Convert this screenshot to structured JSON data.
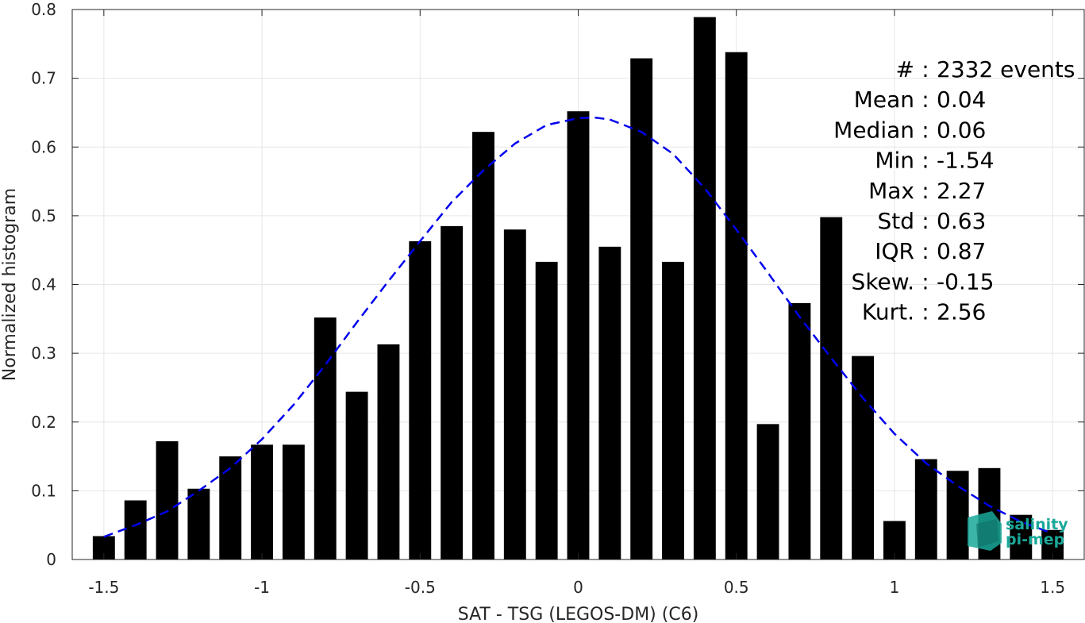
{
  "chart_data": {
    "type": "bar",
    "xlabel": "SAT - TSG (LEGOS-DM) (C6)",
    "ylabel": "Normalized histogram",
    "xlim": [
      -1.6,
      1.6
    ],
    "ylim": [
      0,
      0.8
    ],
    "grid": true,
    "xticks": [
      {
        "value": -1.5,
        "label": "-1.5"
      },
      {
        "value": -1,
        "label": "-1"
      },
      {
        "value": -0.5,
        "label": "-0.5"
      },
      {
        "value": 0,
        "label": "0"
      },
      {
        "value": 0.5,
        "label": "0.5"
      },
      {
        "value": 1,
        "label": "1"
      },
      {
        "value": 1.5,
        "label": "1.5"
      }
    ],
    "yticks": [
      {
        "value": 0,
        "label": "0"
      },
      {
        "value": 0.1,
        "label": "0.1"
      },
      {
        "value": 0.2,
        "label": "0.2"
      },
      {
        "value": 0.3,
        "label": "0.3"
      },
      {
        "value": 0.4,
        "label": "0.4"
      },
      {
        "value": 0.5,
        "label": "0.5"
      },
      {
        "value": 0.6,
        "label": "0.6"
      },
      {
        "value": 0.7,
        "label": "0.7"
      },
      {
        "value": 0.8,
        "label": "0.8"
      }
    ],
    "bar_color": "#000000",
    "bar_width": 0.07,
    "bins": [
      {
        "x": -1.5,
        "y": 0.034
      },
      {
        "x": -1.4,
        "y": 0.086
      },
      {
        "x": -1.3,
        "y": 0.172
      },
      {
        "x": -1.2,
        "y": 0.103
      },
      {
        "x": -1.1,
        "y": 0.15
      },
      {
        "x": -1.0,
        "y": 0.167
      },
      {
        "x": -0.9,
        "y": 0.167
      },
      {
        "x": -0.8,
        "y": 0.352
      },
      {
        "x": -0.7,
        "y": 0.244
      },
      {
        "x": -0.6,
        "y": 0.313
      },
      {
        "x": -0.5,
        "y": 0.463
      },
      {
        "x": -0.4,
        "y": 0.485
      },
      {
        "x": -0.3,
        "y": 0.622
      },
      {
        "x": -0.2,
        "y": 0.48
      },
      {
        "x": -0.1,
        "y": 0.433
      },
      {
        "x": 0.0,
        "y": 0.652
      },
      {
        "x": 0.1,
        "y": 0.455
      },
      {
        "x": 0.2,
        "y": 0.729
      },
      {
        "x": 0.3,
        "y": 0.433
      },
      {
        "x": 0.4,
        "y": 0.789
      },
      {
        "x": 0.5,
        "y": 0.738
      },
      {
        "x": 0.6,
        "y": 0.197
      },
      {
        "x": 0.7,
        "y": 0.373
      },
      {
        "x": 0.8,
        "y": 0.498
      },
      {
        "x": 0.9,
        "y": 0.296
      },
      {
        "x": 1.0,
        "y": 0.056
      },
      {
        "x": 1.1,
        "y": 0.146
      },
      {
        "x": 1.2,
        "y": 0.129
      },
      {
        "x": 1.3,
        "y": 0.133
      },
      {
        "x": 1.4,
        "y": 0.065
      },
      {
        "x": 1.5,
        "y": 0.043
      }
    ],
    "fit_curve": {
      "style": "dashed",
      "color": "#0000ee",
      "x": [
        -1.5,
        -1.4,
        -1.3,
        -1.2,
        -1.1,
        -1.0,
        -0.9,
        -0.8,
        -0.7,
        -0.6,
        -0.5,
        -0.4,
        -0.3,
        -0.2,
        -0.1,
        0.0,
        0.05,
        0.1,
        0.2,
        0.3,
        0.4,
        0.5,
        0.6,
        0.7,
        0.8,
        0.9,
        1.0,
        1.1,
        1.2,
        1.3,
        1.4,
        1.5
      ],
      "y": [
        0.033,
        0.05,
        0.07,
        0.1,
        0.133,
        0.175,
        0.225,
        0.283,
        0.345,
        0.405,
        0.463,
        0.52,
        0.566,
        0.605,
        0.632,
        0.642,
        0.643,
        0.64,
        0.622,
        0.59,
        0.54,
        0.48,
        0.417,
        0.353,
        0.293,
        0.235,
        0.183,
        0.14,
        0.107,
        0.078,
        0.055,
        0.038
      ]
    }
  },
  "stats": [
    {
      "label": "#  ",
      "value": "2332 events"
    },
    {
      "label": "Mean",
      "value": "0.04"
    },
    {
      "label": "Median",
      "value": "0.06"
    },
    {
      "label": "Min",
      "value": "-1.54"
    },
    {
      "label": "Max",
      "value": "2.27"
    },
    {
      "label": "Std",
      "value": "0.63"
    },
    {
      "label": "IQR",
      "value": "0.87"
    },
    {
      "label": "Skew.",
      "value": "-0.15"
    },
    {
      "label": "Kurt.",
      "value": "2.56"
    }
  ],
  "logo": {
    "line1": "salinity",
    "line2": "pi-mep",
    "color": "#1aa89a"
  }
}
